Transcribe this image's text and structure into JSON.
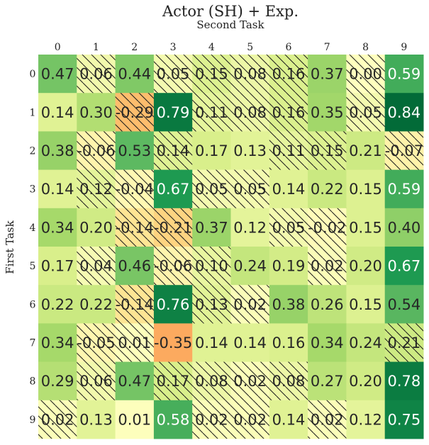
{
  "chart_data": {
    "type": "heatmap",
    "title": "Actor (SH) + Exp.",
    "xlabel": "Second Task",
    "ylabel": "First Task",
    "x_tick_labels": [
      "0",
      "1",
      "2",
      "3",
      "4",
      "5",
      "6",
      "7",
      "8",
      "9"
    ],
    "y_tick_labels": [
      "0",
      "1",
      "2",
      "3",
      "4",
      "5",
      "6",
      "7",
      "8",
      "9"
    ],
    "value_labels": [
      [
        "0.47",
        "0.06",
        "0.44",
        "0.05",
        "0.15",
        "0.08",
        "0.16",
        "0.37",
        "0.00",
        "0.59"
      ],
      [
        "0.14",
        "0.30",
        "-0.29",
        "0.79",
        "0.11",
        "0.08",
        "0.16",
        "0.35",
        "0.05",
        "0.84"
      ],
      [
        "0.38",
        "-0.06",
        "0.53",
        "0.14",
        "0.17",
        "0.13",
        "0.11",
        "0.15",
        "0.21",
        "-0.07"
      ],
      [
        "0.14",
        "0.12",
        "-0.04",
        "0.67",
        "0.05",
        "0.05",
        "0.14",
        "0.22",
        "0.15",
        "0.59"
      ],
      [
        "0.34",
        "0.20",
        "-0.14",
        "-0.21",
        "0.37",
        "0.12",
        "0.05",
        "-0.02",
        "0.15",
        "0.40"
      ],
      [
        "0.17",
        "0.04",
        "0.46",
        "-0.06",
        "0.10",
        "0.24",
        "0.19",
        "0.02",
        "0.20",
        "0.67"
      ],
      [
        "0.22",
        "0.22",
        "-0.14",
        "0.76",
        "0.13",
        "0.02",
        "0.38",
        "0.26",
        "0.15",
        "0.54"
      ],
      [
        "0.34",
        "-0.05",
        "0.01",
        "-0.35",
        "0.14",
        "0.14",
        "0.16",
        "0.34",
        "0.24",
        "0.21"
      ],
      [
        "0.29",
        "0.06",
        "0.47",
        "0.17",
        "0.08",
        "0.02",
        "0.08",
        "0.27",
        "0.20",
        "0.78"
      ],
      [
        "0.02",
        "0.13",
        "0.01",
        "0.58",
        "0.02",
        "0.02",
        "0.14",
        "0.02",
        "0.12",
        "0.75"
      ]
    ],
    "hatched": [
      [
        false,
        true,
        false,
        true,
        true,
        true,
        true,
        false,
        true,
        false
      ],
      [
        false,
        false,
        true,
        false,
        true,
        true,
        true,
        false,
        true,
        false
      ],
      [
        false,
        true,
        false,
        true,
        false,
        false,
        true,
        true,
        false,
        true
      ],
      [
        false,
        true,
        true,
        false,
        true,
        true,
        false,
        false,
        false,
        false
      ],
      [
        false,
        false,
        true,
        true,
        false,
        false,
        true,
        true,
        false,
        false
      ],
      [
        false,
        true,
        false,
        true,
        true,
        false,
        false,
        true,
        false,
        false
      ],
      [
        false,
        false,
        true,
        false,
        true,
        true,
        false,
        false,
        false,
        false
      ],
      [
        false,
        true,
        true,
        false,
        false,
        false,
        false,
        false,
        false,
        true
      ],
      [
        false,
        true,
        false,
        true,
        true,
        true,
        true,
        false,
        false,
        false
      ],
      [
        true,
        false,
        false,
        false,
        true,
        true,
        false,
        true,
        false,
        false
      ]
    ],
    "colormap": "RdYlGn",
    "color_range": [
      -0.85,
      0.85
    ]
  }
}
